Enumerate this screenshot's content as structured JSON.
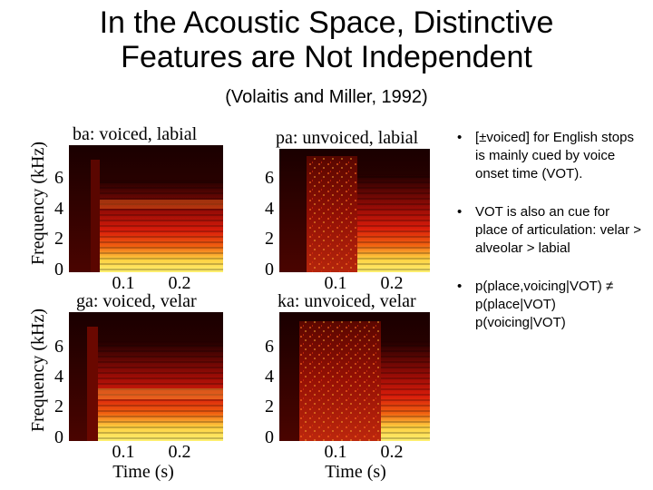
{
  "slide": {
    "title_line1": "In the Acoustic Space, Distinctive",
    "title_line2": "Features are Not Independent",
    "citation": "(Volaitis and Miller, 1992)"
  },
  "figure": {
    "panels": [
      {
        "id": "ba",
        "label": "ba: voiced, labial"
      },
      {
        "id": "pa",
        "label": "pa: unvoiced, labial"
      },
      {
        "id": "ga",
        "label": "ga: voiced, velar"
      },
      {
        "id": "ka",
        "label": "ka: unvoiced, velar"
      }
    ],
    "y_axis_label": "Frequency (kHz)",
    "y_ticks": [
      "6",
      "4",
      "2",
      "0"
    ],
    "x_ticks": [
      "0.1",
      "0.2"
    ],
    "x_axis_label": "Time (s)"
  },
  "bullets": [
    {
      "marker": "•",
      "text": "[±voiced] for English stops is mainly cued by voice onset time (VOT)."
    },
    {
      "marker": "•",
      "text": "VOT is also an cue for place of articulation: velar > alveolar > labial"
    },
    {
      "marker": "•",
      "text": "p(place,voicing|VOT) ≠ p(place|VOT) p(voicing|VOT)"
    }
  ],
  "colors": {
    "spectrogram_dark": "#2a0000",
    "spectrogram_mid": "#c8100a",
    "spectrogram_hot": "#ffee60"
  }
}
